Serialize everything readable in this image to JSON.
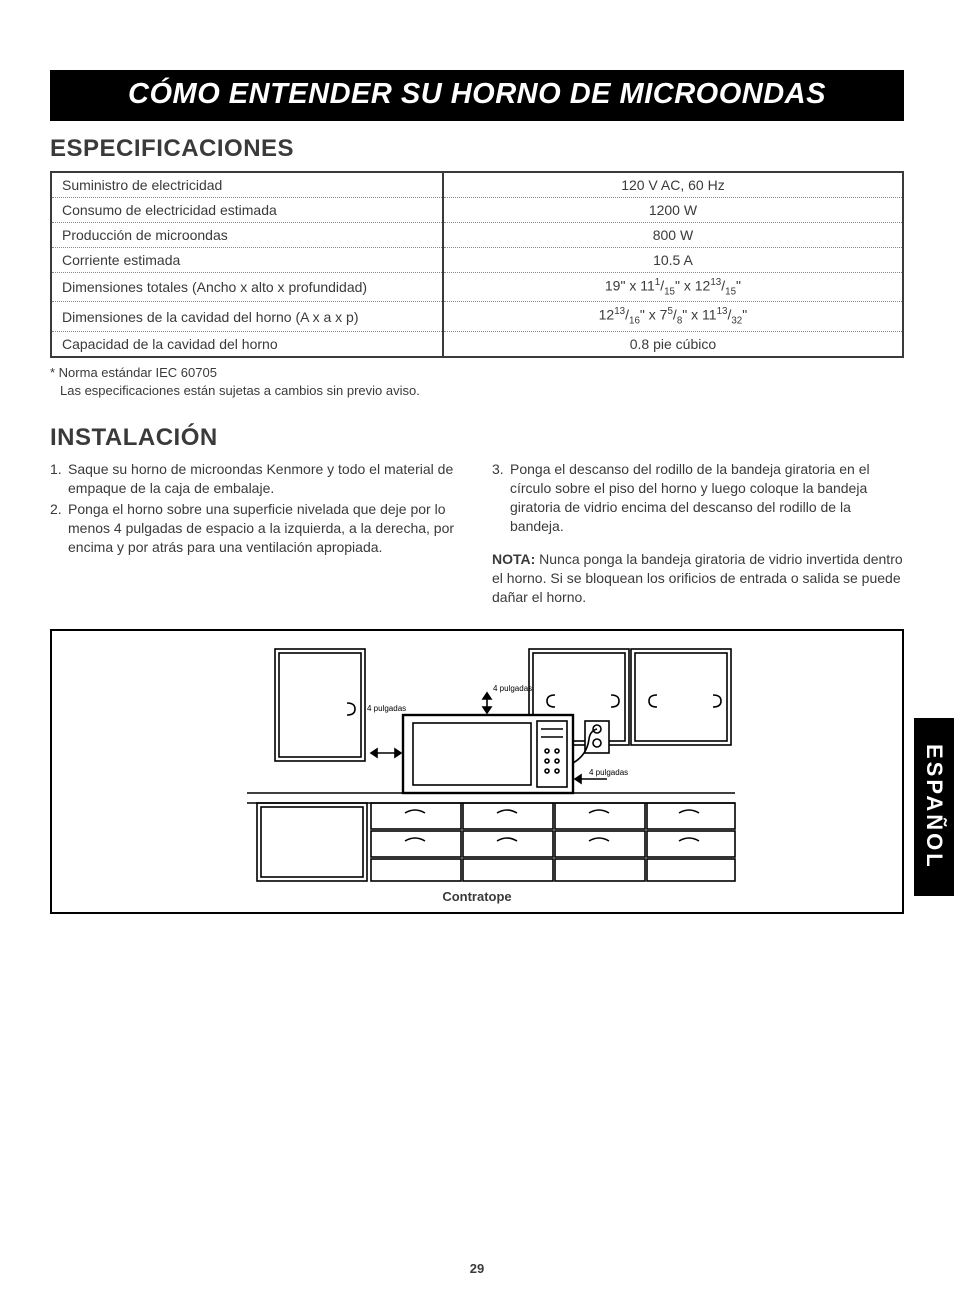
{
  "title": "CÓMO ENTENDER SU HORNO DE MICROONDAS",
  "sections": {
    "specs_heading": "ESPECIFICACIONES",
    "install_heading": "INSTALACIÓN"
  },
  "spec_table": {
    "rows": [
      {
        "label": "Suministro de electricidad",
        "value": "120 V AC, 60 Hz"
      },
      {
        "label": "Consumo de electricidad estimada",
        "value": "1200 W"
      },
      {
        "label": "Producción de microondas",
        "value": "800 W"
      },
      {
        "label": "Corriente estimada",
        "value": "10.5 A"
      },
      {
        "label": "Dimensiones totales (Ancho x alto x profundidad)",
        "value_html": "19\" x 11<sup>1</sup>/<sub>15</sub>\" x 12<sup>13</sup>/<sub>15</sub>\""
      },
      {
        "label": "Dimensiones de la cavidad del horno (A x a x p)",
        "value_html": "12<sup>13</sup>/<sub>16</sub>\" x 7<sup>5</sup>/<sub>8</sub>\" x 11<sup>13</sup>/<sub>32</sub>\""
      },
      {
        "label": "Capacidad de la cavidad del horno",
        "value": "0.8 pie cúbico"
      }
    ]
  },
  "footnote": {
    "line1": "* Norma estándar IEC 60705",
    "line2": "Las especificaciones están sujetas a cambios sin previo aviso."
  },
  "installation": {
    "left": [
      {
        "n": "1.",
        "text": "Saque su horno de microondas Kenmore y todo el material de empaque de la caja de embalaje."
      },
      {
        "n": "2.",
        "text": "Ponga el horno sobre una superficie nivelada que deje por lo menos 4 pulgadas de espacio a la izquierda, a la derecha, por encima y por atrás para una ventilación apropiada."
      }
    ],
    "right": [
      {
        "n": "3.",
        "text": "Ponga el descanso del rodillo de la bandeja giratoria en el círculo sobre el piso del horno y luego coloque la bandeja giratoria de vidrio encima del descanso del rodillo de la bandeja."
      }
    ],
    "note_label": "NOTA:",
    "note_text": " Nunca ponga la bandeja giratoria de vidrio invertida dentro el horno. Si se bloquean los orificios de entrada o salida se puede dañar el horno."
  },
  "diagram": {
    "caption": "Contratope",
    "labels": {
      "left": "4 pulgadas",
      "top": "4 pulgadas",
      "right": "4 pulgadas"
    },
    "colors": {
      "stroke": "#000000",
      "fill": "#ffffff"
    }
  },
  "side_tab": "ESPAÑOL",
  "page_number": "29"
}
